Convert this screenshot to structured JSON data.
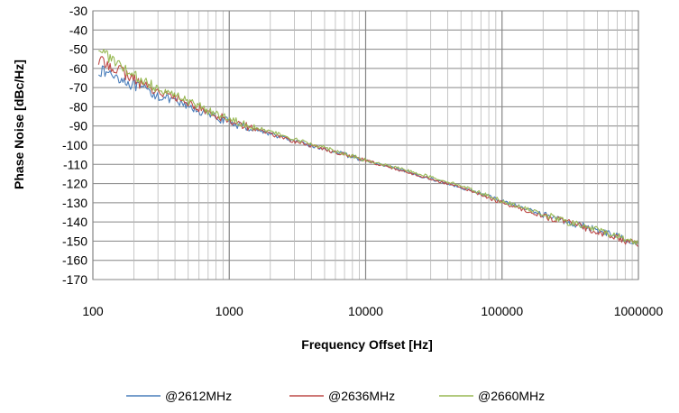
{
  "chart_data": {
    "type": "line",
    "title": "",
    "xlabel": "Frequency Offset [Hz]",
    "ylabel": "Phase Noise [dBc/Hz]",
    "xscale": "log",
    "xlim": [
      100,
      1000000
    ],
    "ylim": [
      -170,
      -30
    ],
    "grid": true,
    "legend_position": "bottom",
    "x_ticks": [
      "100",
      "1000",
      "10000",
      "100000",
      "1000000"
    ],
    "y_ticks": [
      "-30",
      "-40",
      "-50",
      "-60",
      "-70",
      "-80",
      "-90",
      "-100",
      "-110",
      "-120",
      "-130",
      "-140",
      "-150",
      "-160",
      "-170"
    ],
    "x": [
      110,
      150,
      200,
      300,
      500,
      700,
      1000,
      2000,
      3000,
      5000,
      10000,
      20000,
      50000,
      100000,
      200000,
      300000,
      500000,
      1000000
    ],
    "series": [
      {
        "name": "@2612MHz",
        "color": "#4a7ebb",
        "values": [
          -61,
          -64,
          -69,
          -74,
          -80,
          -84,
          -88,
          -94,
          -98,
          -102,
          -108,
          -114,
          -122,
          -129,
          -136,
          -140,
          -144,
          -151
        ]
      },
      {
        "name": "@2636MHz",
        "color": "#be4b48",
        "values": [
          -56,
          -60,
          -66,
          -72,
          -78,
          -83,
          -87,
          -94,
          -98,
          -102,
          -108,
          -114,
          -122,
          -130,
          -137,
          -140,
          -145,
          -152
        ]
      },
      {
        "name": "@2660MHz",
        "color": "#98b954",
        "values": [
          -49,
          -58,
          -64,
          -70,
          -77,
          -82,
          -86,
          -93,
          -97,
          -101,
          -108,
          -113,
          -121,
          -129,
          -136,
          -140,
          -144,
          -151
        ]
      }
    ]
  }
}
